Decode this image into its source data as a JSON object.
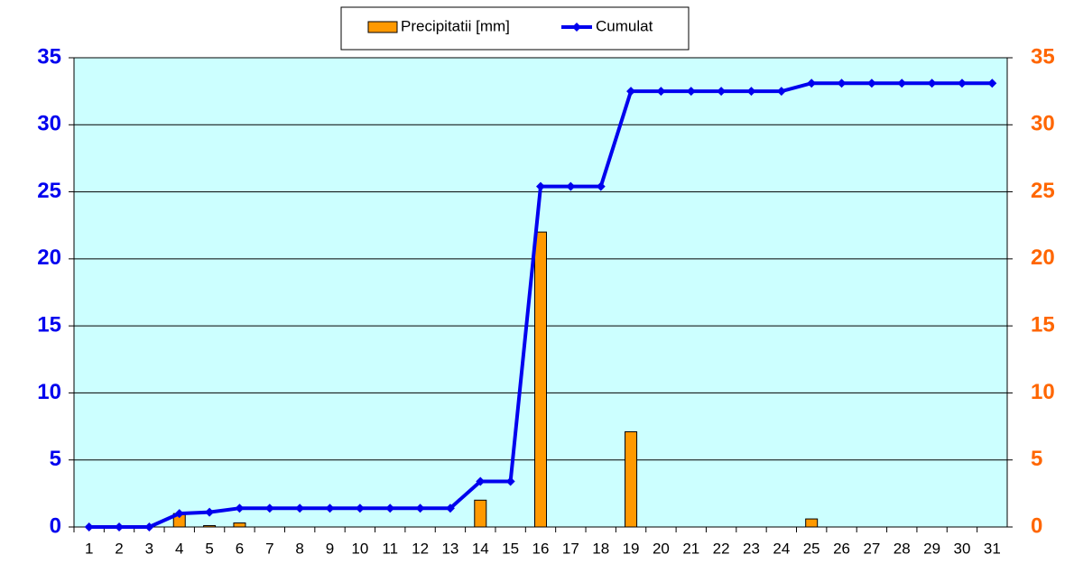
{
  "chart_data": {
    "type": "bar",
    "categories": [
      1,
      2,
      3,
      4,
      5,
      6,
      7,
      8,
      9,
      10,
      11,
      12,
      13,
      14,
      15,
      16,
      17,
      18,
      19,
      20,
      21,
      22,
      23,
      24,
      25,
      26,
      27,
      28,
      29,
      30,
      31
    ],
    "series": [
      {
        "name": "Precipitatii [mm]",
        "type": "bar",
        "color": "#ff9900",
        "axis": "y2",
        "values": [
          0,
          0,
          0,
          1.0,
          0.1,
          0.3,
          0,
          0,
          0,
          0,
          0,
          0,
          0,
          2.0,
          0,
          22.0,
          0,
          0,
          7.1,
          0,
          0,
          0,
          0,
          0,
          0.6,
          0,
          0,
          0,
          0,
          0,
          0
        ]
      },
      {
        "name": "Cumulat",
        "type": "line",
        "color": "#0000ee",
        "values": [
          0,
          0,
          0,
          1.0,
          1.1,
          1.4,
          1.4,
          1.4,
          1.4,
          1.4,
          1.4,
          1.4,
          1.4,
          3.4,
          3.4,
          25.4,
          25.4,
          25.4,
          32.5,
          32.5,
          32.5,
          32.5,
          32.5,
          32.5,
          33.1,
          33.1,
          33.1,
          33.1,
          33.1,
          33.1,
          33.1
        ]
      }
    ],
    "ylim": [
      0,
      35
    ],
    "yticks": [
      0,
      5,
      10,
      15,
      20,
      25,
      30,
      35
    ],
    "ycolor": "#0000ee",
    "y2lim": [
      0,
      35
    ],
    "y2ticks": [
      0,
      5,
      10,
      15,
      20,
      25,
      30,
      35
    ],
    "y2color": "#ff6600",
    "grid": true,
    "plot_background": "#ccffff",
    "legend": "top"
  }
}
